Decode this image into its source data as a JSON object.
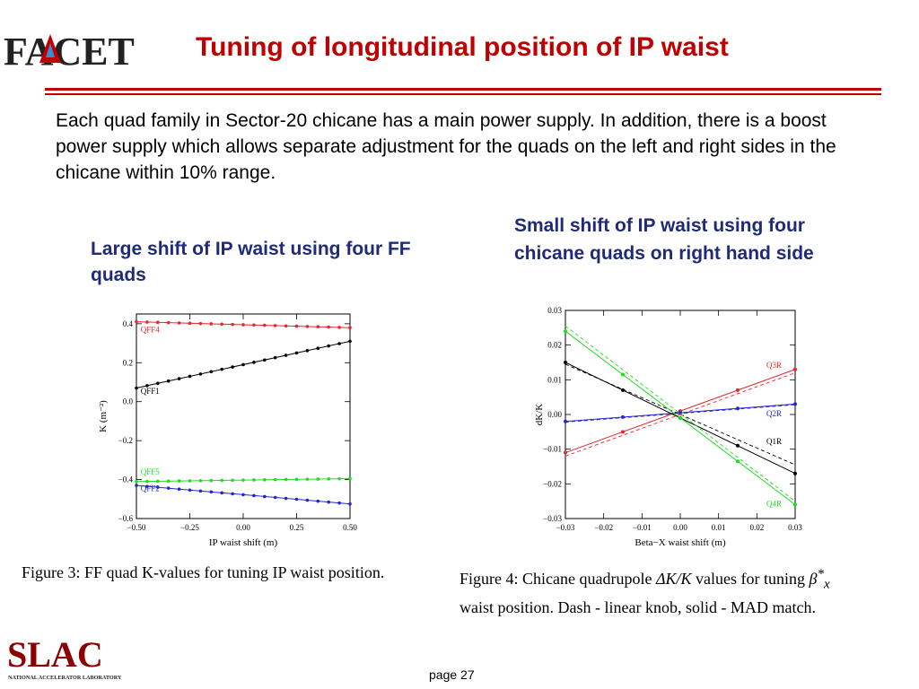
{
  "header": {
    "logo_text": "FACET",
    "title": "Tuning of longitudinal position of IP waist"
  },
  "body": {
    "intro": "Each quad family in Sector-20 chicane has a main power supply. In addition, there is a boost power supply which allows separate adjustment for the quads on the left and right sides in the chicane within 10% range.",
    "left_heading": "Large shift of IP waist using four FF quads",
    "right_heading": "Small shift of IP waist using four chicane quads on right hand side",
    "left_caption": "Figure 3: FF quad K-values for tuning IP waist position.",
    "right_caption_part1": "Figure 4: Chicane quadrupole ",
    "right_caption_math1": "ΔK/K",
    "right_caption_part2": " values for tuning ",
    "right_caption_math2": "β",
    "right_caption_math2_sup": "*",
    "right_caption_math2_sub": "x",
    "right_caption_line2": "waist position. Dash - linear knob, solid - MAD match."
  },
  "footer": {
    "logo_text": "SLAC",
    "logo_subtext": "NATIONAL ACCELERATOR LABORATORY",
    "page": "page 27"
  },
  "colors": {
    "title_red": "#c00000",
    "heading_blue": "#1f2a7a",
    "series_red": "#e8262a",
    "series_black": "#000000",
    "series_green": "#1fdc1f",
    "series_blue": "#2424d6"
  },
  "chart_data": [
    {
      "type": "line",
      "xlabel": "IP waist shift (m)",
      "ylabel": "K (m⁻²)",
      "xlim": [
        -0.5,
        0.5
      ],
      "ylim": [
        -0.6,
        0.45
      ],
      "xticks": [
        "−0.50",
        "−0.25",
        "0.00",
        "0.25",
        "0.50"
      ],
      "yticks": [
        "0.4",
        "0.2",
        "0.0",
        "−0.2",
        "−0.4",
        "−0.6"
      ],
      "xtick_values": [
        -0.5,
        -0.25,
        0,
        0.25,
        0.5
      ],
      "ytick_values": [
        0.4,
        0.2,
        0,
        -0.2,
        -0.4,
        -0.6
      ],
      "grid": false,
      "points_per_series": 21,
      "series": [
        {
          "name": "QFF4",
          "color": "#e8262a",
          "x": [
            -0.5,
            0.5
          ],
          "values": [
            0.41,
            0.38
          ],
          "label_x": -0.48,
          "label_y": 0.355
        },
        {
          "name": "QFF1",
          "color": "#000000",
          "x": [
            -0.5,
            0.5
          ],
          "values": [
            0.07,
            0.31
          ],
          "label_x": -0.48,
          "label_y": 0.04
        },
        {
          "name": "QFF5",
          "color": "#1fdc1f",
          "x": [
            -0.5,
            0.5
          ],
          "values": [
            -0.41,
            -0.395
          ],
          "label_x": -0.48,
          "label_y": -0.375
        },
        {
          "name": "QFF2",
          "color": "#2424d6",
          "x": [
            -0.5,
            0.5
          ],
          "values": [
            -0.43,
            -0.525
          ],
          "label_x": -0.48,
          "label_y": -0.46
        }
      ]
    },
    {
      "type": "line",
      "xlabel": "Beta−X waist shift (m)",
      "ylabel": "dK/K",
      "xlim": [
        -0.03,
        0.03
      ],
      "ylim": [
        -0.03,
        0.03
      ],
      "xticks": [
        "−0.03",
        "−0.02",
        "−0.01",
        "0.00",
        "0.01",
        "0.02",
        "0.03"
      ],
      "yticks": [
        "0.03",
        "0.02",
        "0.01",
        "0.00",
        "−0.01",
        "−0.02",
        "−0.03"
      ],
      "xtick_values": [
        -0.03,
        -0.02,
        -0.01,
        0,
        0.01,
        0.02,
        0.03
      ],
      "ytick_values": [
        0.03,
        0.02,
        0.01,
        0,
        -0.01,
        -0.02,
        -0.03
      ],
      "grid": false,
      "marker_x": [
        -0.03,
        -0.015,
        0,
        0.015,
        0.03
      ],
      "series": [
        {
          "name": "Q3R",
          "color": "#e8262a",
          "x": [
            -0.03,
            0.03
          ],
          "values": [
            -0.011,
            0.013
          ],
          "dash_values": [
            -0.012,
            0.012
          ],
          "label_x": 0.0225,
          "label_y": 0.0135
        },
        {
          "name": "Q2R",
          "color": "#2424d6",
          "x": [
            -0.03,
            0.03
          ],
          "values": [
            -0.002,
            0.003
          ],
          "dash_values": [
            -0.0022,
            0.0028
          ],
          "label_x": 0.0225,
          "label_y": -0.0005
        },
        {
          "name": "Q1R",
          "color": "#000000",
          "x": [
            -0.03,
            0.03
          ],
          "values": [
            0.015,
            -0.017
          ],
          "dash_values": [
            0.0145,
            -0.0145
          ],
          "label_x": 0.0225,
          "label_y": -0.0085
        },
        {
          "name": "Q4R",
          "color": "#1fdc1f",
          "x": [
            -0.03,
            0.03
          ],
          "values": [
            0.024,
            -0.026
          ],
          "dash_values": [
            0.0255,
            -0.025
          ],
          "label_x": 0.0225,
          "label_y": -0.0265
        }
      ]
    }
  ]
}
